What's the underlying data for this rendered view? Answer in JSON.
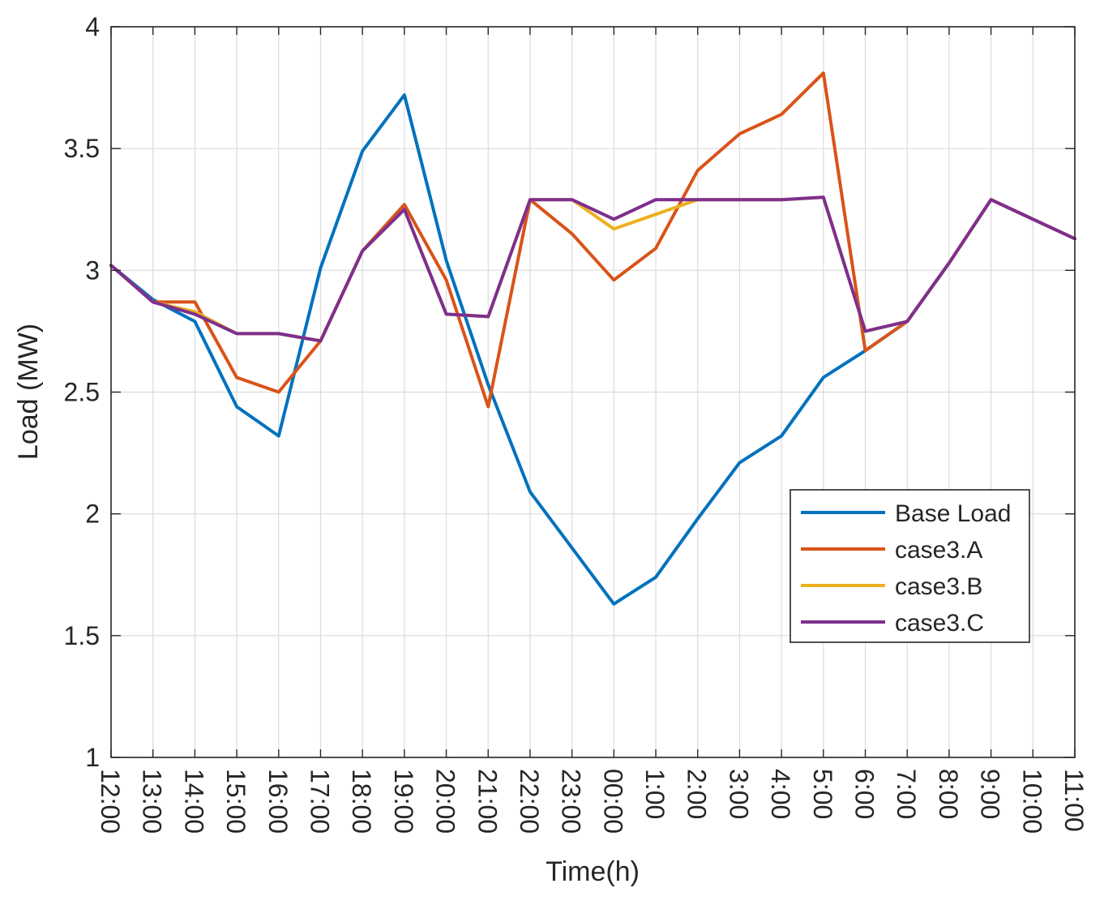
{
  "chart_data": {
    "type": "line",
    "title": "",
    "xlabel": "Time(h)",
    "ylabel": "Load (MW)",
    "ylim": [
      1,
      4
    ],
    "yticks": [
      "1",
      "1.5",
      "2",
      "2.5",
      "3",
      "3.5",
      "4"
    ],
    "grid": true,
    "legend_position": "right",
    "categories": [
      "12:00",
      "13:00",
      "14:00",
      "15:00",
      "16:00",
      "17:00",
      "18:00",
      "19:00",
      "20:00",
      "21:00",
      "22:00",
      "23:00",
      "00:00",
      "1:00",
      "2:00",
      "3:00",
      "4:00",
      "5:00",
      "6:00",
      "7:00",
      "8:00",
      "9:00",
      "10:00",
      "11:00"
    ],
    "series": [
      {
        "name": "Base Load",
        "color": "#0072BD",
        "values": [
          3.02,
          2.88,
          2.79,
          2.44,
          2.32,
          3.01,
          3.49,
          3.72,
          3.04,
          2.53,
          2.09,
          1.86,
          1.63,
          1.74,
          1.98,
          2.21,
          2.32,
          2.56,
          2.67,
          2.79,
          3.03,
          3.29,
          3.21,
          3.13
        ]
      },
      {
        "name": "case3.A",
        "color": "#D95319",
        "values": [
          3.02,
          2.87,
          2.87,
          2.56,
          2.5,
          2.71,
          3.08,
          3.27,
          2.96,
          2.44,
          3.29,
          3.15,
          2.96,
          3.09,
          3.41,
          3.56,
          3.64,
          3.81,
          2.67,
          2.79,
          3.03,
          3.29,
          3.21,
          3.13
        ]
      },
      {
        "name": "case3.B",
        "color": "#EDB120",
        "values": [
          3.02,
          2.87,
          2.83,
          2.74,
          2.74,
          2.71,
          3.08,
          3.25,
          2.82,
          2.81,
          3.29,
          3.29,
          3.17,
          3.23,
          3.29,
          3.29,
          3.29,
          3.3,
          2.75,
          2.79,
          3.03,
          3.29,
          3.21,
          3.13
        ]
      },
      {
        "name": "case3.C",
        "color": "#7E2F8E",
        "values": [
          3.02,
          2.87,
          2.82,
          2.74,
          2.74,
          2.71,
          3.08,
          3.25,
          2.82,
          2.81,
          3.29,
          3.29,
          3.21,
          3.29,
          3.29,
          3.29,
          3.29,
          3.3,
          2.75,
          2.79,
          3.03,
          3.29,
          3.21,
          3.13
        ]
      }
    ]
  }
}
